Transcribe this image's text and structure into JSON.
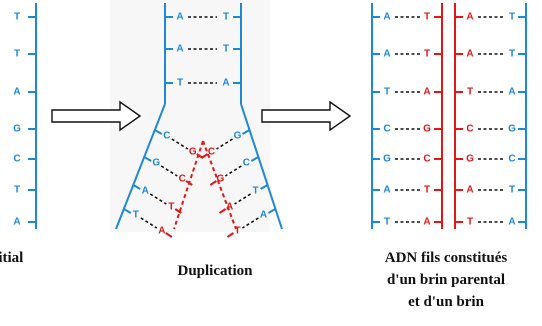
{
  "colors": {
    "blue": "#1e88d8",
    "red": "#e01818",
    "bg_mid": "#f7f7f7",
    "dash": "#111111"
  },
  "left_strand": {
    "bases": [
      "T",
      "T",
      "A",
      "G",
      "C",
      "T",
      "A"
    ]
  },
  "middle": {
    "top_pairs": [
      {
        "l": "A",
        "r": "T"
      },
      {
        "l": "A",
        "r": "T"
      },
      {
        "l": "T",
        "r": "A"
      }
    ],
    "left_fork": [
      {
        "b": "C",
        "n": "G"
      },
      {
        "b": "G",
        "n": "C"
      },
      {
        "b": "A",
        "n": "T"
      },
      {
        "b": "T",
        "n": "A"
      }
    ],
    "right_fork": [
      {
        "b": "G",
        "n": "C"
      },
      {
        "b": "C",
        "n": "G"
      },
      {
        "b": "T",
        "n": "A"
      },
      {
        "b": "A",
        "n": "T"
      }
    ]
  },
  "right_pairs": [
    {
      "l": "A",
      "r": "T"
    },
    {
      "l": "A",
      "r": "T"
    },
    {
      "l": "T",
      "r": "A"
    },
    {
      "l": "C",
      "r": "G"
    },
    {
      "l": "G",
      "r": "C"
    },
    {
      "l": "A",
      "r": "T"
    },
    {
      "l": "T",
      "r": "A"
    }
  ],
  "captions": {
    "left": "nitial",
    "middle": "Duplication",
    "right_lines": [
      "ADN fils constitués",
      "d'un brin parental",
      "et d'un brin"
    ]
  }
}
